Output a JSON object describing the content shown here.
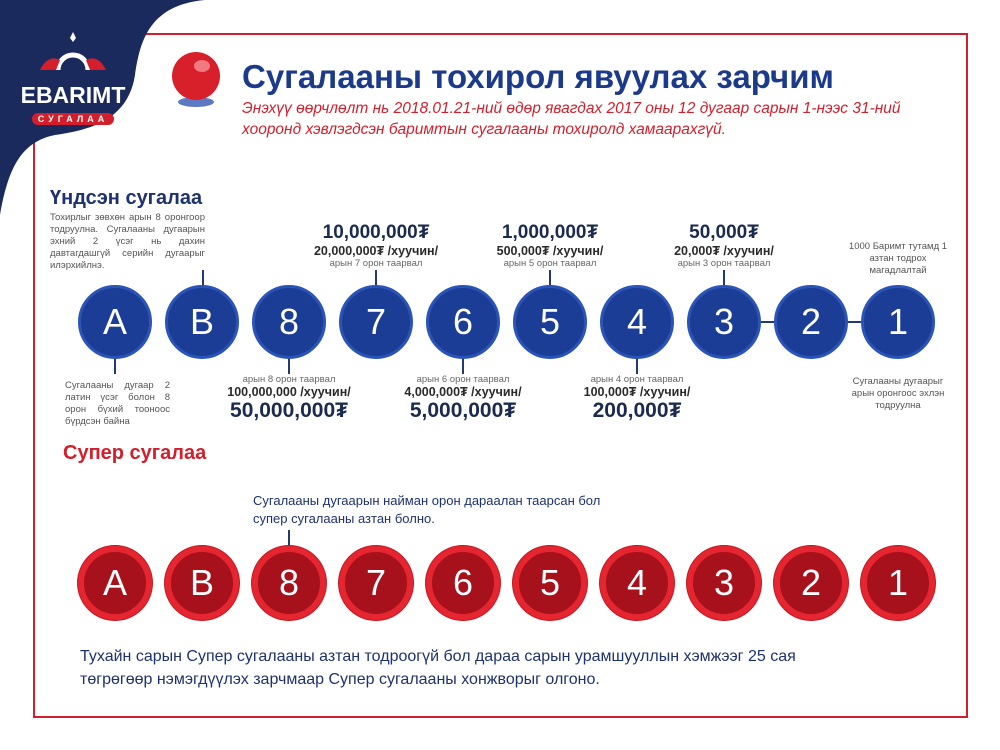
{
  "logo": {
    "brand": "EBARIMT",
    "sub": "СУГАЛАА"
  },
  "header": {
    "title": "Сугалааны тохирол явуулах зарчим",
    "subtitle": "Энэхүү өөрчлөлт нь 2018.01.21-ний өдөр явагдах 2017 оны 12 дугаар сарын 1-нээс 31-ний хооронд хэвлэгдсэн баримтын сугалааны тохиролд хамаарахгүй."
  },
  "main": {
    "heading": "Үндсэн сугалаа",
    "note_top_left": "Тохирлыг зөвхөн арын 8 оронгоор тодруулна. Сугалааны дугаарын эхний 2 үсэг нь дахин давтагдашгүй серийн дугаарыг илэрхийлнэ.",
    "note_bottom_left": "Сугалааны дугаар 2 латин үсэг болон 8 орон бүхий тооноос бүрдсэн байна",
    "note_top_right": "1000 Баримт тутамд 1 азтан тодрох магадлалтай",
    "note_bottom_right": "Сугалааны дугаарыг арын оронгоос эхлэн тодруулна",
    "balls": [
      "A",
      "B",
      "8",
      "7",
      "6",
      "5",
      "4",
      "3",
      "2",
      "1"
    ],
    "prizes_top": [
      {
        "amount": "10,000,000₮",
        "old": "20,000,000₮ /хуучин/",
        "match": "арын 7 орон таарвал"
      },
      {
        "amount": "1,000,000₮",
        "old": "500,000₮ /хуучин/",
        "match": "арын 5 орон таарвал"
      },
      {
        "amount": "50,000₮",
        "old": "20,000₮ /хуучин/",
        "match": "арын 3 орон таарвал"
      }
    ],
    "prizes_bottom": [
      {
        "match": "арын 8 орон таарвал",
        "old": "100,000,000 /хуучин/",
        "amount": "50,000,000₮"
      },
      {
        "match": "арын 6 орон таарвал",
        "old": "4,000,000₮ /хуучин/",
        "amount": "5,000,000₮"
      },
      {
        "match": "арын 4 орон таарвал",
        "old": "100,000₮ /хуучин/",
        "amount": "200,000₮"
      }
    ]
  },
  "super": {
    "heading": "Супер сугалаа",
    "note": "Сугалааны дугаарын найман орон дараалан таарсан бол супер сугалааны азтан болно.",
    "balls": [
      "A",
      "B",
      "8",
      "7",
      "6",
      "5",
      "4",
      "3",
      "2",
      "1"
    ]
  },
  "footer": "Тухайн сарын Супер сугалааны азтан тодроогүй бол дараа сарын урамшууллын хэмжээг 25 сая төгрөгөөр нэмэгдүүлэх зарчмаар Супер сугалааны хонжворыг олгоно.",
  "colors": {
    "navy": "#1b2a5c",
    "blue": "#1b3d95",
    "red": "#d21f2b"
  }
}
